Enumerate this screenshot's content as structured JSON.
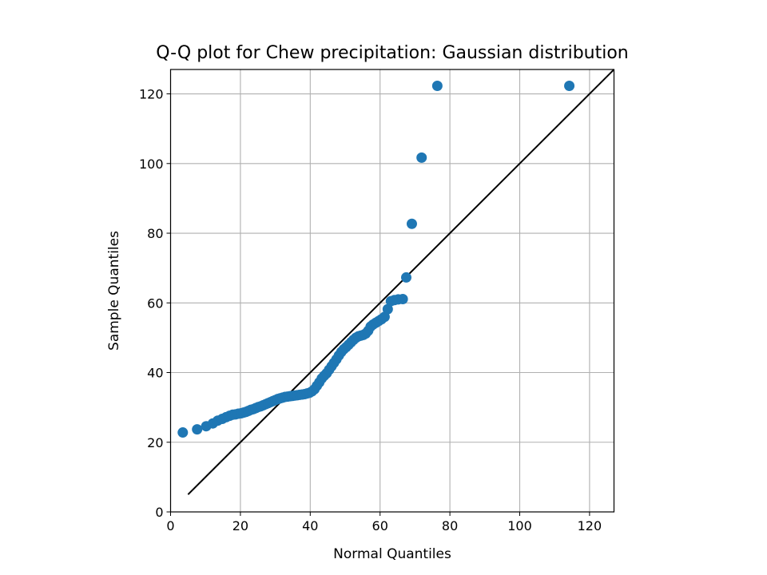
{
  "chart_data": {
    "type": "scatter",
    "title": "Q-Q plot for Chew precipitation: Gaussian distribution",
    "xlabel": "Normal Quantiles",
    "ylabel": "Sample Quantiles",
    "xlim": [
      0,
      127
    ],
    "ylim": [
      0,
      127
    ],
    "xticks": [
      0,
      20,
      40,
      60,
      80,
      100,
      120
    ],
    "yticks": [
      0,
      20,
      40,
      60,
      80,
      100,
      120
    ],
    "grid": true,
    "colors": {
      "points": "#1f77b4",
      "reference_line": "#000000",
      "grid": "#b0b0b0"
    },
    "reference_line": {
      "x": [
        5,
        127
      ],
      "y": [
        5,
        127
      ]
    },
    "series": [
      {
        "x": [
          3.5,
          7.6,
          10.2,
          12.1,
          13.5,
          14.8,
          15.9,
          16.9,
          17.8,
          18.6,
          19.4,
          20.2,
          20.9,
          21.6,
          22.3,
          23.0,
          23.7,
          24.4,
          25.1,
          25.8,
          26.5,
          27.2,
          27.9,
          28.6,
          29.3,
          30.0,
          30.7,
          31.4,
          32.1,
          32.8,
          33.5,
          34.2,
          34.9,
          35.6,
          36.3,
          37.0,
          37.7,
          38.4,
          39.1,
          39.8,
          40.5,
          41.2,
          41.9,
          42.6,
          43.3,
          44.0,
          44.7,
          45.4,
          46.1,
          46.8,
          47.5,
          48.2,
          48.9,
          49.6,
          50.3,
          51.0,
          51.7,
          52.4,
          53.1,
          53.8,
          54.5,
          55.2,
          55.9,
          56.6,
          57.3,
          58.0,
          58.8,
          59.6,
          60.4,
          61.3,
          62.2,
          63.1,
          64.1,
          65.2,
          66.5,
          67.5,
          69.1,
          71.9,
          76.4,
          114.2
        ],
        "y": [
          22.8,
          23.7,
          24.6,
          25.4,
          26.2,
          26.7,
          27.2,
          27.6,
          27.9,
          28.0,
          28.2,
          28.3,
          28.5,
          28.7,
          29.0,
          29.3,
          29.5,
          29.8,
          30.1,
          30.3,
          30.6,
          30.9,
          31.2,
          31.5,
          31.8,
          32.1,
          32.4,
          32.6,
          32.8,
          33.0,
          33.1,
          33.2,
          33.3,
          33.4,
          33.5,
          33.6,
          33.7,
          33.8,
          34.0,
          34.2,
          34.6,
          35.2,
          36.2,
          37.2,
          38.3,
          39.1,
          39.8,
          40.8,
          41.8,
          42.8,
          43.8,
          44.9,
          45.9,
          46.7,
          47.3,
          48.0,
          48.7,
          49.4,
          50.0,
          50.4,
          50.6,
          50.8,
          51.2,
          52.0,
          53.2,
          53.8,
          54.3,
          54.8,
          55.3,
          56.0,
          58.2,
          60.5,
          60.8,
          61.0,
          61.1,
          67.3,
          82.7,
          101.7,
          122.3,
          122.3
        ]
      }
    ]
  }
}
